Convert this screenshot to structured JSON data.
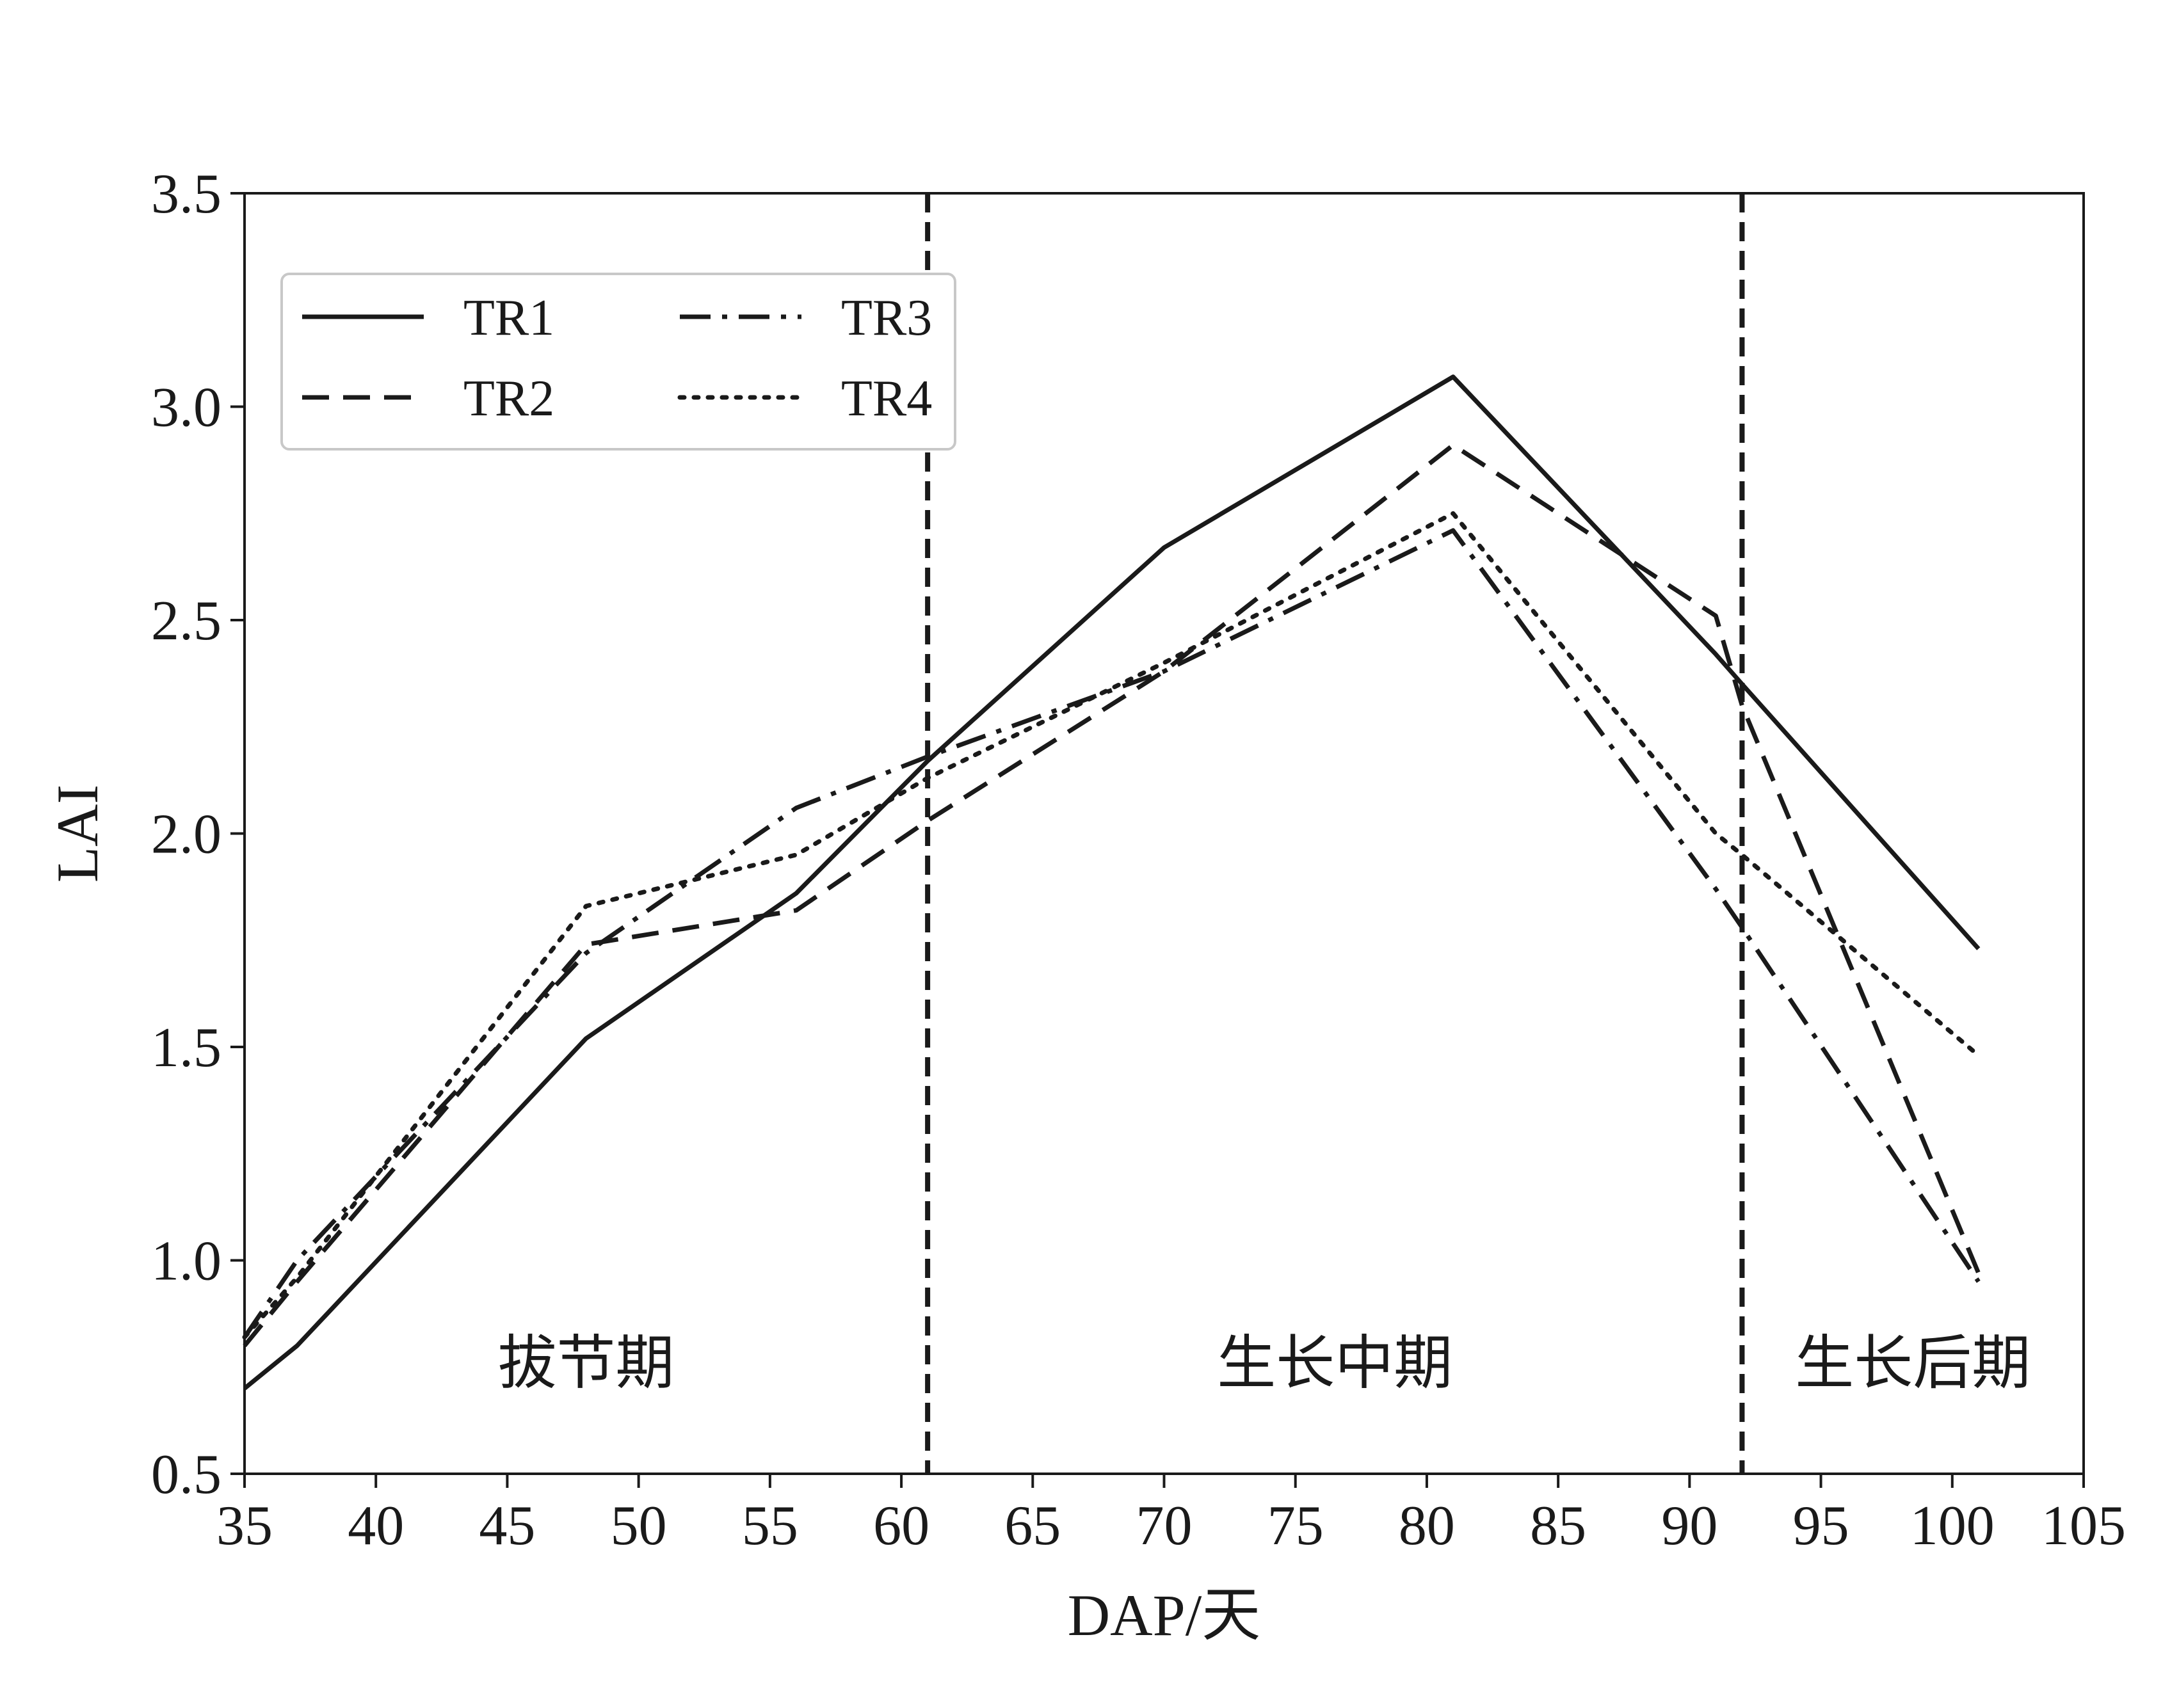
{
  "chart_data": {
    "type": "line",
    "title": "",
    "xlabel": "DAP/天",
    "ylabel": "LAI",
    "xlim": [
      35,
      105
    ],
    "ylim": [
      0.5,
      3.5
    ],
    "xticks": [
      35,
      40,
      45,
      50,
      55,
      60,
      65,
      70,
      75,
      80,
      85,
      90,
      95,
      100,
      105
    ],
    "yticks": [
      "0.5",
      "1.0",
      "1.5",
      "2.0",
      "2.5",
      "3.0",
      "3.5"
    ],
    "grid": false,
    "legend_position": "top-left",
    "x": [
      35,
      37,
      48,
      56,
      61,
      70,
      81,
      91,
      92,
      101
    ],
    "series": [
      {
        "name": "TR1",
        "style": "solid",
        "values": [
          0.7,
          0.8,
          1.52,
          1.86,
          2.17,
          2.67,
          3.07,
          2.42,
          2.35,
          1.73
        ]
      },
      {
        "name": "TR2",
        "style": "dashed",
        "values": [
          0.8,
          0.95,
          1.74,
          1.82,
          2.03,
          2.38,
          2.91,
          2.51,
          2.3,
          0.97
        ]
      },
      {
        "name": "TR3",
        "style": "dashdot",
        "values": [
          0.82,
          1.0,
          1.72,
          2.06,
          2.18,
          2.38,
          2.71,
          1.87,
          1.78,
          0.95
        ]
      },
      {
        "name": "TR4",
        "style": "dotted",
        "values": [
          0.82,
          0.96,
          1.83,
          1.95,
          2.13,
          2.4,
          2.75,
          2.0,
          1.95,
          1.48
        ]
      }
    ],
    "phase_boundaries": [
      61,
      92
    ],
    "phase_labels": [
      {
        "text": "拔节期",
        "x": 48,
        "y": 0.76
      },
      {
        "text": "生长中期",
        "x": 76.5,
        "y": 0.76
      },
      {
        "text": "生长后期",
        "x": 98.5,
        "y": 0.76
      }
    ],
    "colors": {
      "line": "#1a1a1a"
    }
  }
}
